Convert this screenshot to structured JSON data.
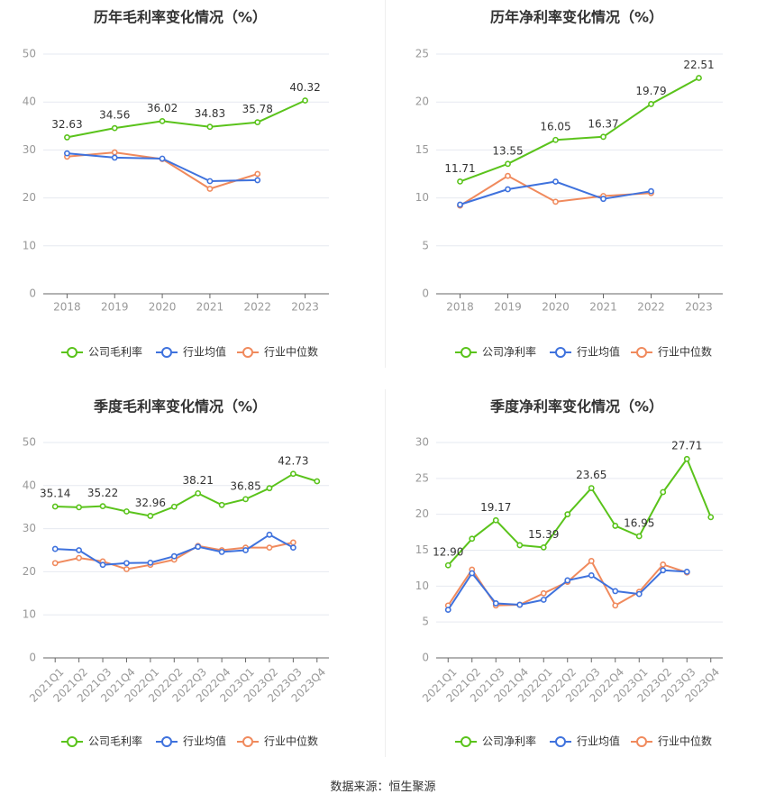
{
  "colors": {
    "company": "#5ac31b",
    "industry_avg": "#3f72dd",
    "industry_median": "#f08a5d",
    "grid": "#e6e9f0",
    "axis": "#999999",
    "text": "#333333"
  },
  "legend": {
    "avg_label": "行业均值",
    "median_label": "行业中位数"
  },
  "source": "数据来源：恒生聚源",
  "chart_data": [
    {
      "type": "line",
      "title": "历年毛利率变化情况（%）",
      "legend_company": "公司毛利率",
      "categories": [
        "2018",
        "2019",
        "2020",
        "2021",
        "2022",
        "2023"
      ],
      "ylim": [
        0,
        50
      ],
      "yticks": [
        0,
        10,
        20,
        30,
        40,
        50
      ],
      "series": [
        {
          "name": "公司毛利率",
          "key": "company",
          "values": [
            32.63,
            34.56,
            36.02,
            34.83,
            35.78,
            40.32
          ],
          "labels": [
            "32.63",
            "34.56",
            "36.02",
            "34.83",
            "35.78",
            "40.32"
          ]
        },
        {
          "name": "行业均值",
          "key": "industry_avg",
          "values": [
            29.3,
            28.4,
            28.2,
            23.5,
            23.7,
            null
          ]
        },
        {
          "name": "行业中位数",
          "key": "industry_median",
          "values": [
            28.6,
            29.5,
            28.1,
            21.9,
            25.0,
            null
          ]
        }
      ]
    },
    {
      "type": "line",
      "title": "历年净利率变化情况（%）",
      "legend_company": "公司净利率",
      "categories": [
        "2018",
        "2019",
        "2020",
        "2021",
        "2022",
        "2023"
      ],
      "ylim": [
        0,
        25
      ],
      "yticks": [
        0,
        5,
        10,
        15,
        20,
        25
      ],
      "series": [
        {
          "name": "公司净利率",
          "key": "company",
          "values": [
            11.71,
            13.55,
            16.05,
            16.37,
            19.79,
            22.51
          ],
          "labels": [
            "11.71",
            "13.55",
            "16.05",
            "16.37",
            "19.79",
            "22.51"
          ]
        },
        {
          "name": "行业均值",
          "key": "industry_avg",
          "values": [
            9.3,
            10.9,
            11.7,
            9.9,
            10.7,
            null
          ]
        },
        {
          "name": "行业中位数",
          "key": "industry_median",
          "values": [
            9.2,
            12.3,
            9.6,
            10.2,
            10.5,
            null
          ]
        }
      ]
    },
    {
      "type": "line",
      "title": "季度毛利率变化情况（%）",
      "legend_company": "公司毛利率",
      "categories": [
        "2021Q1",
        "2021Q2",
        "2021Q3",
        "2021Q4",
        "2022Q1",
        "2022Q2",
        "2022Q3",
        "2022Q4",
        "2023Q1",
        "2023Q2",
        "2023Q3",
        "2023Q4"
      ],
      "ylim": [
        0,
        50
      ],
      "yticks": [
        0,
        10,
        20,
        30,
        40,
        50
      ],
      "series": [
        {
          "name": "公司毛利率",
          "key": "company",
          "values": [
            35.14,
            34.96,
            35.22,
            34.0,
            32.96,
            35.1,
            38.21,
            35.5,
            36.85,
            39.4,
            42.73,
            41.0
          ],
          "labels": [
            "35.14",
            null,
            "35.22",
            null,
            "32.96",
            null,
            "38.21",
            null,
            "36.85",
            null,
            "42.73",
            null
          ]
        },
        {
          "name": "行业均值",
          "key": "industry_avg",
          "values": [
            25.3,
            25.0,
            21.6,
            22.0,
            22.1,
            23.6,
            25.8,
            24.6,
            25.0,
            28.6,
            25.6,
            null
          ]
        },
        {
          "name": "行业中位数",
          "key": "industry_median",
          "values": [
            22.0,
            23.2,
            22.4,
            20.6,
            21.6,
            22.8,
            26.0,
            25.0,
            25.6,
            25.6,
            26.8,
            null
          ]
        }
      ]
    },
    {
      "type": "line",
      "title": "季度净利率变化情况（%）",
      "legend_company": "公司净利率",
      "categories": [
        "2021Q1",
        "2021Q2",
        "2021Q3",
        "2021Q4",
        "2022Q1",
        "2022Q2",
        "2022Q3",
        "2022Q4",
        "2023Q1",
        "2023Q2",
        "2023Q3",
        "2023Q4"
      ],
      "ylim": [
        0,
        30
      ],
      "yticks": [
        0,
        5,
        10,
        15,
        20,
        25,
        30
      ],
      "series": [
        {
          "name": "公司净利率",
          "key": "company",
          "values": [
            12.9,
            16.6,
            19.17,
            15.7,
            15.39,
            20.0,
            23.65,
            18.4,
            16.95,
            23.1,
            27.71,
            19.6
          ],
          "labels": [
            "12.90",
            null,
            "19.17",
            null,
            "15.39",
            null,
            "23.65",
            null,
            "16.95",
            null,
            "27.71",
            null
          ]
        },
        {
          "name": "行业均值",
          "key": "industry_avg",
          "values": [
            6.7,
            11.8,
            7.6,
            7.4,
            8.1,
            10.8,
            11.5,
            9.3,
            8.9,
            12.2,
            12.0,
            null
          ]
        },
        {
          "name": "行业中位数",
          "key": "industry_median",
          "values": [
            7.3,
            12.3,
            7.3,
            7.4,
            9.0,
            10.6,
            13.5,
            7.3,
            9.2,
            13.0,
            11.9,
            null
          ]
        }
      ]
    }
  ]
}
